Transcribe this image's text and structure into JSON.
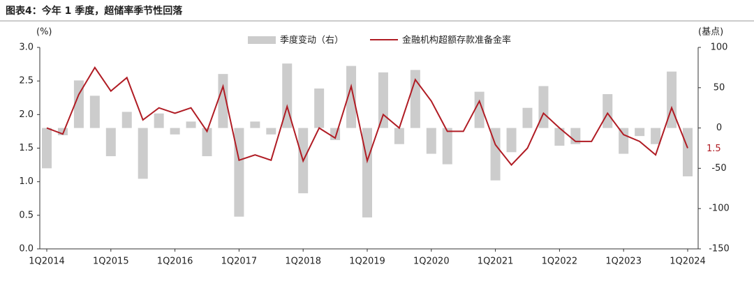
{
  "chart_data": {
    "type": "bar-line",
    "title": "图表4：今年 1 季度，超储率季节性回落",
    "y_label": "(%)",
    "y2_label": "(基点)",
    "annotation": "1.5",
    "categories": [
      "1Q2014",
      null,
      null,
      null,
      "1Q2015",
      null,
      null,
      null,
      "1Q2016",
      null,
      null,
      null,
      "1Q2017",
      null,
      null,
      null,
      "1Q2018",
      null,
      null,
      null,
      "1Q2019",
      null,
      null,
      null,
      "1Q2020",
      null,
      null,
      null,
      "1Q2021",
      null,
      null,
      null,
      "1Q2022",
      null,
      null,
      null,
      "1Q2023",
      null,
      null,
      null,
      "1Q2024"
    ],
    "series": [
      {
        "name": "季度变动（右）",
        "type": "bar",
        "axis": "y2",
        "color": "#cccccc",
        "values": [
          -50,
          -9,
          59,
          40,
          -35,
          20,
          -63,
          18,
          -8,
          8,
          -35,
          67,
          -110,
          8,
          -8,
          80,
          -81,
          49,
          -15,
          77,
          -111,
          69,
          -20,
          72,
          -32,
          -45,
          0,
          45,
          -65,
          -30,
          25,
          52,
          -22,
          -20,
          0,
          42,
          -32,
          -10,
          -20,
          70,
          -60
        ]
      },
      {
        "name": "金融机构超额存款准备金率",
        "type": "line",
        "axis": "y",
        "color": "#b01c24",
        "values": [
          1.8,
          1.71,
          2.3,
          2.7,
          2.35,
          2.55,
          1.92,
          2.1,
          2.02,
          2.1,
          1.75,
          2.42,
          1.32,
          1.4,
          1.32,
          2.12,
          1.31,
          1.8,
          1.65,
          2.42,
          1.31,
          2.0,
          1.8,
          2.52,
          2.2,
          1.75,
          1.75,
          2.2,
          1.55,
          1.25,
          1.5,
          2.02,
          1.8,
          1.6,
          1.6,
          2.02,
          1.7,
          1.6,
          1.4,
          2.1,
          1.5
        ]
      }
    ],
    "ylim": [
      0,
      3
    ],
    "yticks": [
      {
        "value": 0,
        "label": "0.0"
      },
      {
        "value": 0.5,
        "label": "0.5"
      },
      {
        "value": 1,
        "label": "1.0"
      },
      {
        "value": 1.5,
        "label": "1.5"
      },
      {
        "value": 2,
        "label": "2.0"
      },
      {
        "value": 2.5,
        "label": "2.5"
      },
      {
        "value": 3,
        "label": "3.0"
      }
    ],
    "y2lim": [
      -150,
      100
    ],
    "y2ticks": [
      100,
      50,
      0,
      -50,
      -100,
      -150
    ]
  }
}
